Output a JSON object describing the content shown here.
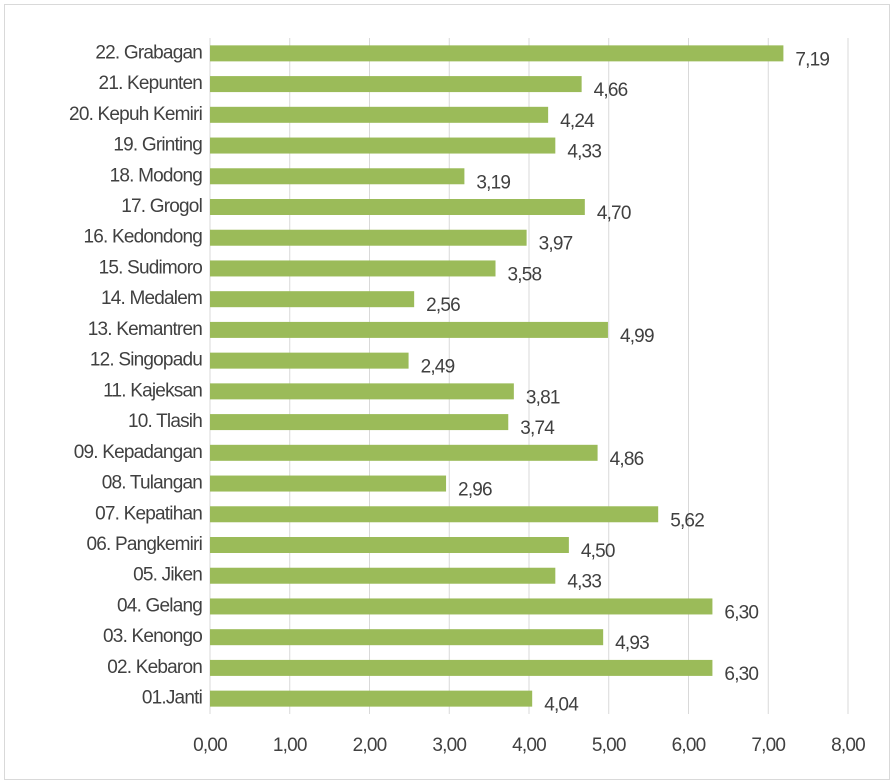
{
  "chart_data": {
    "type": "bar",
    "orientation": "horizontal",
    "categories": [
      "22. Grabagan",
      "21. Kepunten",
      "20. Kepuh Kemiri",
      "19. Grinting",
      "18. Modong",
      "17. Grogol",
      "16. Kedondong",
      "15. Sudimoro",
      "14. Medalem",
      "13. Kemantren",
      "12. Singopadu",
      "11. Kajeksan",
      "10. Tlasih",
      "09. Kepadangan",
      "08. Tulangan",
      "07. Kepatihan",
      "06. Pangkemiri",
      "05. Jiken",
      "04. Gelang",
      "03. Kenongo",
      "02. Kebaron",
      "01.Janti"
    ],
    "values": [
      7.19,
      4.66,
      4.24,
      4.33,
      3.19,
      4.7,
      3.97,
      3.58,
      2.56,
      4.99,
      2.49,
      3.81,
      3.74,
      4.86,
      2.96,
      5.62,
      4.5,
      4.33,
      6.3,
      4.93,
      6.3,
      4.04
    ],
    "value_labels": [
      "7,19",
      "4,66",
      "4,24",
      "4,33",
      "3,19",
      "4,70",
      "3,97",
      "3,58",
      "2,56",
      "4,99",
      "2,49",
      "3,81",
      "3,74",
      "4,86",
      "2,96",
      "5,62",
      "4,50",
      "4,33",
      "6,30",
      "4,93",
      "6,30",
      "4,04"
    ],
    "color": "#9bbb59",
    "xlim": [
      0,
      8
    ],
    "xticks": [
      {
        "value": 0,
        "label": "0,00"
      },
      {
        "value": 1,
        "label": "1,00"
      },
      {
        "value": 2,
        "label": "2,00"
      },
      {
        "value": 3,
        "label": "3,00"
      },
      {
        "value": 4,
        "label": "4,00"
      },
      {
        "value": 5,
        "label": "5,00"
      },
      {
        "value": 6,
        "label": "6,00"
      },
      {
        "value": 7,
        "label": "7,00"
      },
      {
        "value": 8,
        "label": "8,00"
      }
    ],
    "grid": true
  }
}
